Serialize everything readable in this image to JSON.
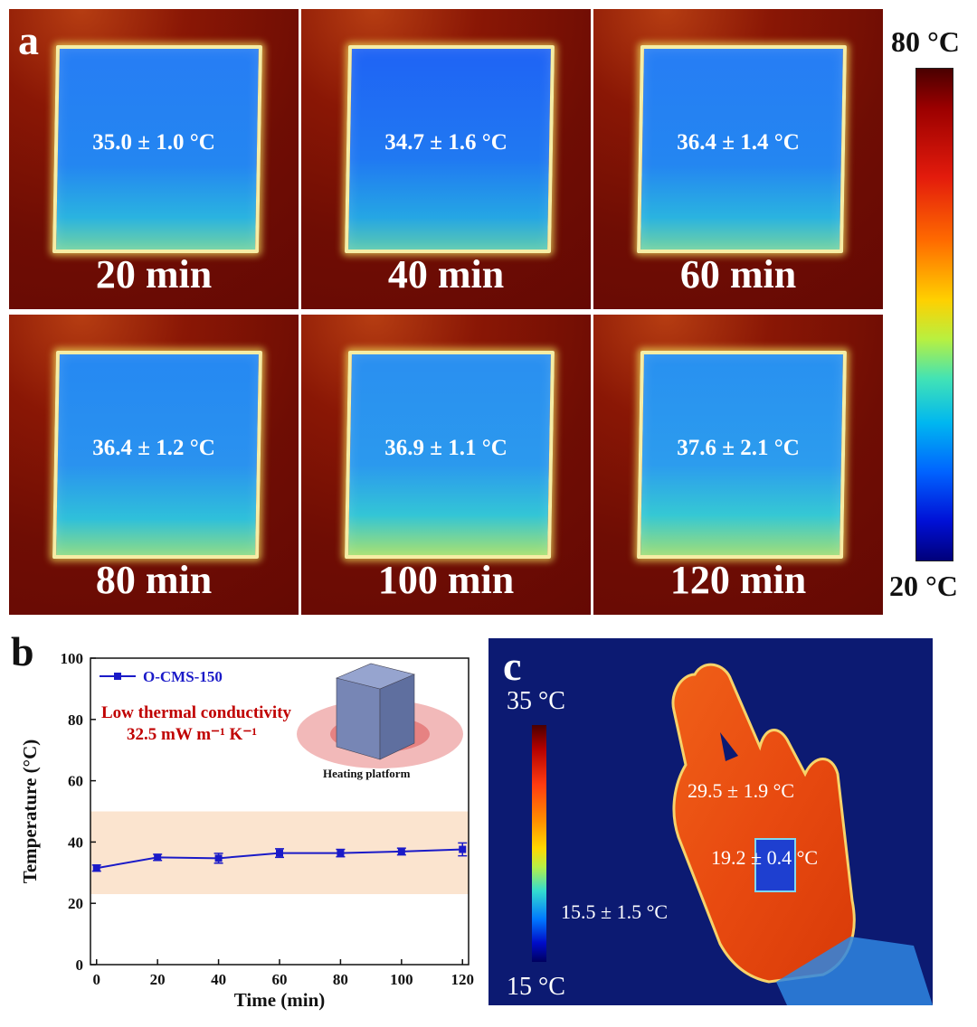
{
  "panel_a": {
    "letter": "a",
    "tiles": [
      {
        "temp": "35.0 ± 1.0  °C",
        "time": "20 min"
      },
      {
        "temp": "34.7 ± 1.6  °C",
        "time": "40 min"
      },
      {
        "temp": "36.4 ± 1.4  °C",
        "time": "60 min"
      },
      {
        "temp": "36.4 ± 1.2  °C",
        "time": "80 min"
      },
      {
        "temp": "36.9 ± 1.1  °C",
        "time": "100 min"
      },
      {
        "temp": "37.6 ± 2.1  °C",
        "time": "120 min"
      }
    ],
    "scale_max": "80 °C",
    "scale_min": "20 °C"
  },
  "panel_c": {
    "letter": "c",
    "scale_max": "35 °C",
    "scale_min": "15 °C",
    "hand_temp": "29.5 ± 1.9  °C",
    "sample_temp": "19.2 ± 0.4  °C",
    "background_temp": "15.5 ± 1.5 °C"
  },
  "chart_data": {
    "type": "line",
    "panel_letter": "b",
    "x": [
      0,
      20,
      40,
      60,
      80,
      100,
      120
    ],
    "series": [
      {
        "name": "O-CMS-150",
        "values": [
          31.5,
          35.0,
          34.7,
          36.4,
          36.4,
          36.9,
          37.6
        ],
        "errors": [
          1.0,
          1.0,
          1.6,
          1.4,
          1.2,
          1.1,
          2.1
        ],
        "color": "#1a1ac8"
      }
    ],
    "xlabel": "Time (min)",
    "ylabel": "Temperature (°C)",
    "xlim": [
      -2,
      122
    ],
    "ylim": [
      0,
      100
    ],
    "xticks": [
      "0",
      "20",
      "40",
      "60",
      "80",
      "100",
      "120"
    ],
    "yticks": [
      "0",
      "20",
      "40",
      "60",
      "80",
      "100"
    ],
    "shaded_band": {
      "y_from": 23,
      "y_to": 50,
      "color": "#fbe4cf"
    },
    "annotation_title": "Low thermal conductivity",
    "annotation_value": "32.5 mW m⁻¹ K⁻¹",
    "annotation_color": "#c00000",
    "inset_label": "Heating platform",
    "legend_placement": "top-left"
  }
}
